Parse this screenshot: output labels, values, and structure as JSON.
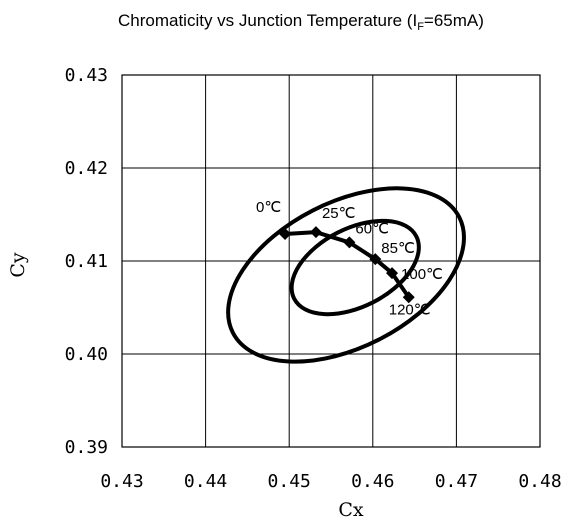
{
  "chart_data": {
    "type": "line",
    "title": {
      "main": "Chromaticity vs Junction Temperature (I",
      "subscript": "F",
      "tail": "=65mA)"
    },
    "xlabel": "Cx",
    "ylabel": "Cy",
    "xlim": [
      0.43,
      0.48
    ],
    "ylim": [
      0.39,
      0.43
    ],
    "x_ticks": [
      "0.43",
      "0.44",
      "0.45",
      "0.46",
      "0.47",
      "0.48"
    ],
    "y_ticks": [
      "0.39",
      "0.40",
      "0.41",
      "0.42",
      "0.43"
    ],
    "grid": true,
    "series": [
      {
        "points": [
          {
            "x": 0.4495,
            "y": 0.4129,
            "label": "0℃"
          },
          {
            "x": 0.4532,
            "y": 0.4131,
            "label": "25℃"
          },
          {
            "x": 0.4572,
            "y": 0.412,
            "label": "60℃"
          },
          {
            "x": 0.4603,
            "y": 0.4102,
            "label": "85℃"
          },
          {
            "x": 0.4623,
            "y": 0.4087,
            "label": "100℃"
          },
          {
            "x": 0.4643,
            "y": 0.4061,
            "label": "120℃"
          }
        ]
      }
    ],
    "ellipses": [
      {
        "cx": 0.4568,
        "cy": 0.4085,
        "rx": 0.0152,
        "ry": 0.0078,
        "angle_deg": 27
      },
      {
        "cx": 0.4579,
        "cy": 0.4093,
        "rx": 0.0082,
        "ry": 0.0042,
        "angle_deg": 27
      }
    ]
  }
}
